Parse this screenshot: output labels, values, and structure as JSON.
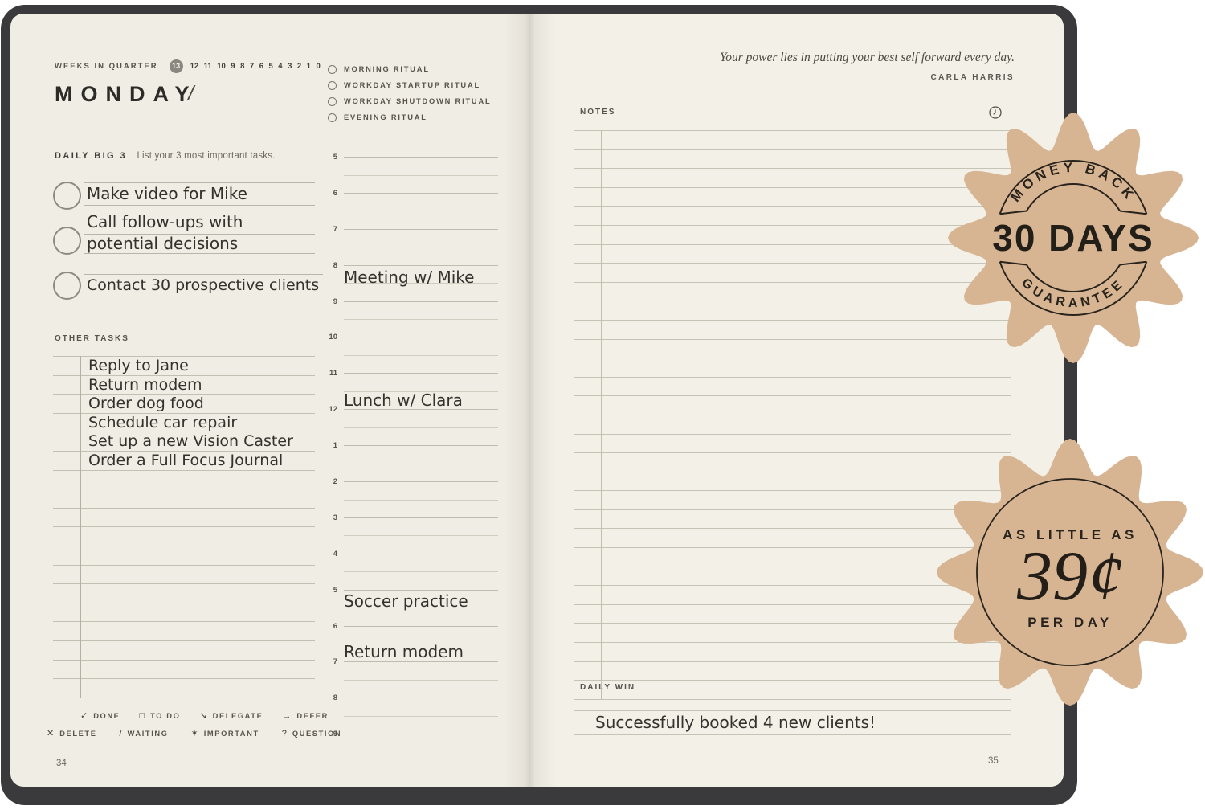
{
  "left": {
    "weeks": {
      "label": "WEEKS IN QUARTER",
      "current": "13",
      "numbers": [
        "12",
        "11",
        "10",
        "9",
        "8",
        "7",
        "6",
        "5",
        "4",
        "3",
        "2",
        "1",
        "0"
      ]
    },
    "day": {
      "title": "MONDAY",
      "slash": "/"
    },
    "big3": {
      "label": "DAILY BIG 3",
      "sublabel": "List your 3 most important tasks.",
      "tasks": [
        {
          "text": "Make video for Mike"
        },
        {
          "text": "Call follow-ups with",
          "text2": "potential decisions"
        },
        {
          "text": "Contact 30 prospective clients"
        }
      ]
    },
    "other_tasks": {
      "label": "OTHER TASKS",
      "items": [
        "Reply to Jane",
        "Return modem",
        "Order dog food",
        "Schedule car repair",
        "Set up a new Vision Caster",
        "Order a Full Focus Journal"
      ]
    },
    "rituals": [
      "MORNING RITUAL",
      "WORKDAY STARTUP RITUAL",
      "WORKDAY SHUTDOWN RITUAL",
      "EVENING RITUAL"
    ],
    "schedule": {
      "hours": [
        "5",
        "6",
        "7",
        "8",
        "9",
        "10",
        "11",
        "12",
        "1",
        "2",
        "3",
        "4",
        "5",
        "6",
        "7",
        "8",
        "9"
      ],
      "entries": [
        {
          "time": "8",
          "text": "Meeting w/ Mike"
        },
        {
          "time": "12",
          "text": "Lunch w/ Clara"
        },
        {
          "time": "5",
          "text": "Soccer practice"
        },
        {
          "time": "7",
          "text": "Return modem"
        }
      ]
    },
    "legend": [
      {
        "symbol": "✓",
        "label": "DONE"
      },
      {
        "symbol": "□",
        "label": "TO DO"
      },
      {
        "symbol": "↘",
        "label": "DELEGATE"
      },
      {
        "symbol": "→",
        "label": "DEFER"
      },
      {
        "symbol": "✕",
        "label": "DELETE"
      },
      {
        "symbol": "/",
        "label": "WAITING"
      },
      {
        "symbol": "✶",
        "label": "IMPORTANT"
      },
      {
        "symbol": "?",
        "label": "QUESTION"
      }
    ],
    "page_number": "34"
  },
  "right": {
    "quote": {
      "text": "Your power lies in putting your best self forward every day.",
      "author": "CARLA HARRIS"
    },
    "notes_label": "NOTES",
    "daily_win": {
      "label": "DAILY WIN",
      "text": "Successfully booked 4 new clients!"
    },
    "page_number": "35"
  },
  "badges": {
    "money_back": {
      "top": "MONEY BACK",
      "middle": "30 DAYS",
      "bottom": "GUARANTEE",
      "fill": "#d8b592",
      "ink": "#28231c"
    },
    "price": {
      "top": "AS LITTLE AS",
      "middle": "39¢",
      "bottom": "PER DAY",
      "fill": "#d8b592",
      "ink": "#28231c"
    }
  }
}
